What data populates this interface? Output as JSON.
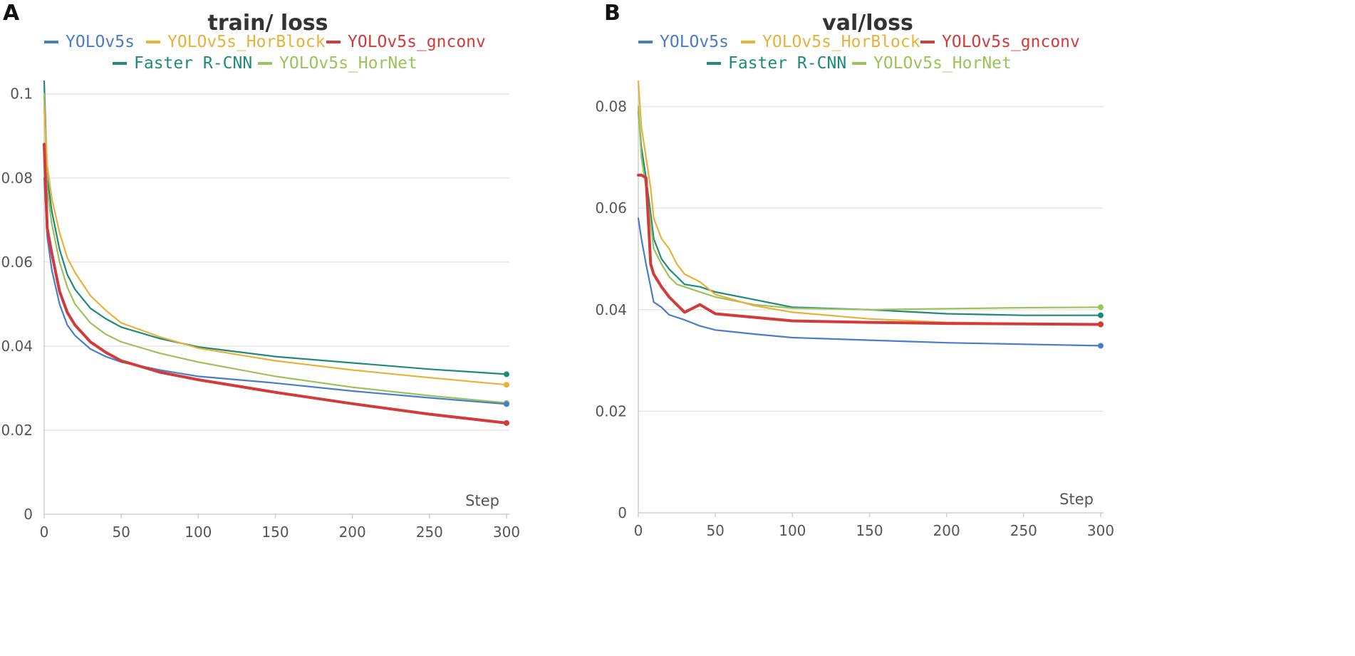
{
  "chart_data": [
    {
      "type": "line",
      "panel_letter": "A",
      "title": "train/ loss",
      "xlabel": "Step",
      "ylabel": "",
      "xlim": [
        0,
        300
      ],
      "ylim": [
        0,
        0.103
      ],
      "x_ticks": [
        0,
        50,
        100,
        150,
        200,
        250,
        300
      ],
      "x_tick_labels": [
        "0",
        "50",
        "100",
        "150",
        "200",
        "250",
        "300"
      ],
      "y_ticks": [
        0,
        0.02,
        0.04,
        0.06,
        0.08,
        0.1
      ],
      "y_tick_labels": [
        "0",
        "0.02",
        "0.04",
        "0.06",
        "0.08",
        "0.1"
      ],
      "grid": true,
      "legend_position": "top",
      "series": [
        {
          "name": "YOLOv5s",
          "color": "#4a7cc7",
          "x": [
            0,
            2,
            5,
            10,
            15,
            20,
            30,
            40,
            50,
            75,
            100,
            150,
            200,
            250,
            300
          ],
          "y": [
            0.08,
            0.066,
            0.058,
            0.05,
            0.045,
            0.0425,
            0.0393,
            0.0375,
            0.0362,
            0.0343,
            0.0328,
            0.0312,
            0.0293,
            0.0277,
            0.0262
          ]
        },
        {
          "name": "YOLOv5s_HorBlock",
          "color": "#e6b23a",
          "x": [
            0,
            2,
            5,
            10,
            15,
            20,
            30,
            40,
            50,
            75,
            100,
            150,
            200,
            250,
            300
          ],
          "y": [
            0.097,
            0.083,
            0.075,
            0.067,
            0.061,
            0.0575,
            0.052,
            0.0485,
            0.0455,
            0.0422,
            0.0395,
            0.0365,
            0.0343,
            0.0325,
            0.0308
          ]
        },
        {
          "name": "YOLOv5s_gnconv",
          "color": "#d23b3b",
          "x": [
            0,
            2,
            5,
            10,
            15,
            20,
            30,
            40,
            50,
            75,
            100,
            150,
            200,
            250,
            300
          ],
          "y": [
            0.088,
            0.068,
            0.062,
            0.053,
            0.048,
            0.045,
            0.041,
            0.0385,
            0.0365,
            0.0338,
            0.032,
            0.029,
            0.0263,
            0.0238,
            0.0217
          ]
        },
        {
          "name": "Faster R-CNN",
          "color": "#1f8a7a",
          "x": [
            0,
            2,
            5,
            10,
            15,
            20,
            30,
            40,
            50,
            75,
            100,
            150,
            200,
            250,
            300
          ],
          "y": [
            0.103,
            0.08,
            0.072,
            0.063,
            0.057,
            0.0535,
            0.049,
            0.0465,
            0.0445,
            0.0418,
            0.0398,
            0.0375,
            0.036,
            0.0345,
            0.0333
          ]
        },
        {
          "name": "YOLOv5s_HorNet",
          "color": "#9cc25a",
          "x": [
            0,
            2,
            5,
            10,
            15,
            20,
            30,
            40,
            50,
            75,
            100,
            150,
            200,
            250,
            300
          ],
          "y": [
            0.1,
            0.077,
            0.069,
            0.06,
            0.054,
            0.05,
            0.0455,
            0.0428,
            0.041,
            0.0383,
            0.0362,
            0.0328,
            0.0302,
            0.0282,
            0.0265
          ]
        }
      ]
    },
    {
      "type": "line",
      "panel_letter": "B",
      "title": "val/loss",
      "xlabel": "Step",
      "ylabel": "",
      "xlim": [
        0,
        300
      ],
      "ylim": [
        0,
        0.085
      ],
      "x_ticks": [
        0,
        50,
        100,
        150,
        200,
        250,
        300
      ],
      "x_tick_labels": [
        "0",
        "50",
        "100",
        "150",
        "200",
        "250",
        "300"
      ],
      "y_ticks": [
        0,
        0.02,
        0.04,
        0.06,
        0.08
      ],
      "y_tick_labels": [
        "0",
        "0.02",
        "0.04",
        "0.06",
        "0.08"
      ],
      "grid": true,
      "legend_position": "top",
      "series": [
        {
          "name": "YOLOv5s",
          "color": "#4a7cc7",
          "x": [
            0,
            2,
            5,
            8,
            10,
            15,
            20,
            25,
            30,
            40,
            50,
            75,
            100,
            150,
            200,
            250,
            300
          ],
          "y": [
            0.058,
            0.054,
            0.049,
            0.0445,
            0.0415,
            0.0405,
            0.039,
            0.0385,
            0.038,
            0.0368,
            0.036,
            0.0352,
            0.0345,
            0.034,
            0.0335,
            0.0332,
            0.0329
          ]
        },
        {
          "name": "YOLOv5s_HorBlock",
          "color": "#e6b23a",
          "x": [
            0,
            2,
            5,
            8,
            10,
            15,
            20,
            25,
            30,
            40,
            50,
            75,
            100,
            150,
            200,
            250,
            300
          ],
          "y": [
            0.085,
            0.076,
            0.07,
            0.064,
            0.058,
            0.054,
            0.052,
            0.049,
            0.047,
            0.0455,
            0.043,
            0.0408,
            0.0395,
            0.0382,
            0.0375,
            0.0373,
            0.0372
          ]
        },
        {
          "name": "YOLOv5s_gnconv",
          "color": "#d23b3b",
          "x": [
            0,
            2,
            5,
            7,
            8,
            10,
            15,
            20,
            25,
            30,
            40,
            50,
            75,
            100,
            150,
            200,
            250,
            300
          ],
          "y": [
            0.0665,
            0.0665,
            0.066,
            0.055,
            0.049,
            0.047,
            0.0445,
            0.0425,
            0.041,
            0.0395,
            0.041,
            0.0392,
            0.0385,
            0.0378,
            0.0375,
            0.0373,
            0.0372,
            0.0371
          ]
        },
        {
          "name": "Faster R-CNN",
          "color": "#1f8a7a",
          "x": [
            0,
            2,
            5,
            8,
            10,
            15,
            20,
            25,
            30,
            40,
            50,
            75,
            100,
            150,
            200,
            250,
            300
          ],
          "y": [
            0.079,
            0.072,
            0.066,
            0.059,
            0.054,
            0.05,
            0.048,
            0.0465,
            0.045,
            0.0445,
            0.0435,
            0.042,
            0.0405,
            0.04,
            0.0392,
            0.0389,
            0.0389
          ]
        },
        {
          "name": "YOLOv5s_HorNet",
          "color": "#9cc25a",
          "x": [
            0,
            2,
            5,
            8,
            10,
            15,
            20,
            25,
            30,
            40,
            50,
            75,
            100,
            150,
            200,
            250,
            300
          ],
          "y": [
            0.08,
            0.07,
            0.064,
            0.057,
            0.052,
            0.049,
            0.0465,
            0.045,
            0.0445,
            0.0435,
            0.0425,
            0.041,
            0.0403,
            0.04,
            0.0402,
            0.0404,
            0.0405
          ]
        }
      ]
    }
  ]
}
